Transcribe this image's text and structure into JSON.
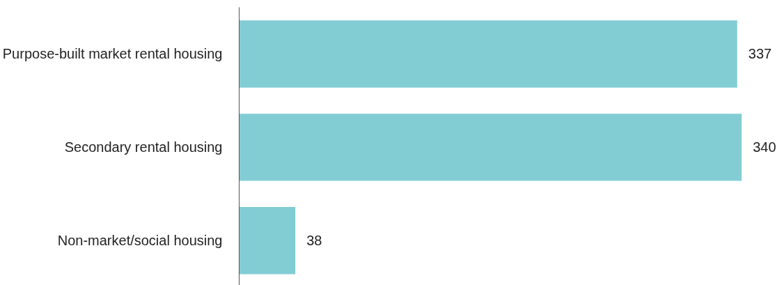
{
  "chart_data": {
    "type": "bar",
    "orientation": "horizontal",
    "categories": [
      "Purpose-built market rental housing",
      "Secondary rental housing",
      "Non-market/social housing"
    ],
    "values": [
      337,
      340,
      38
    ],
    "color": "#82cdd4",
    "data_labels": true,
    "tick_labels": "y",
    "grid": false
  }
}
